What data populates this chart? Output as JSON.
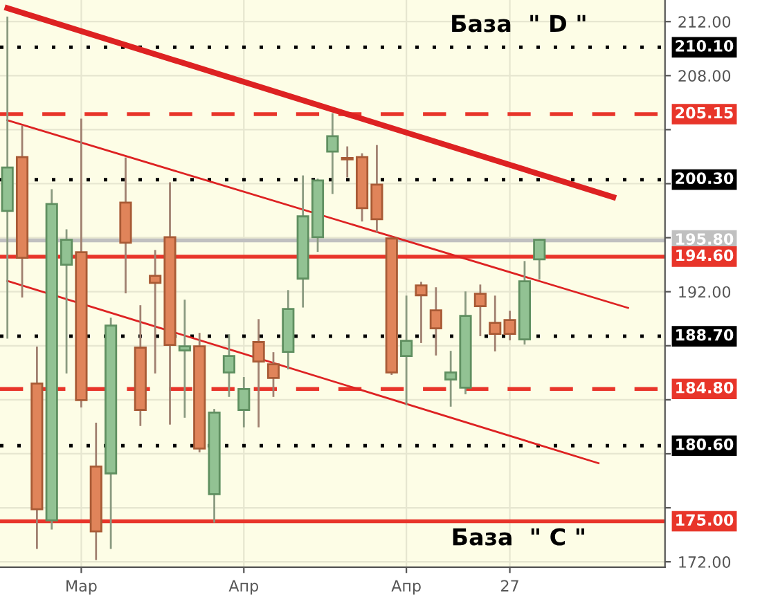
{
  "chart_data": {
    "type": "candlestick",
    "categories": [
      null,
      null,
      null,
      null,
      null,
      "Мар",
      null,
      null,
      null,
      null,
      null,
      null,
      null,
      null,
      null,
      null,
      "Апр",
      null,
      null,
      null,
      null,
      null,
      null,
      null,
      null,
      null,
      null,
      "Апр",
      null,
      null,
      null,
      null,
      null,
      null,
      "27",
      null,
      null,
      null,
      null,
      null,
      null,
      null,
      null,
      null,
      null
    ],
    "ohlc": [
      [
        197.98,
        212.3,
        188.6,
        201.2
      ],
      [
        201.97,
        204.23,
        191.64,
        194.51
      ],
      [
        185.2,
        187.86,
        173.02,
        175.89
      ],
      [
        175.07,
        199.52,
        174.46,
        198.5
      ],
      [
        194.0,
        196.55,
        186.02,
        195.84
      ],
      [
        194.92,
        204.74,
        183.5,
        183.97
      ],
      [
        179.06,
        182.23,
        172.2,
        174.25
      ],
      [
        178.55,
        190.0,
        173.02,
        189.49
      ],
      [
        198.6,
        201.87,
        191.95,
        195.63
      ],
      [
        187.86,
        190.93,
        182.13,
        183.25
      ],
      [
        193.18,
        195.02,
        186.02,
        192.66
      ],
      [
        196.04,
        200.03,
        182.23,
        188.06
      ],
      [
        187.65,
        191.34,
        182.74,
        187.96
      ],
      [
        187.96,
        188.88,
        180.18,
        180.39
      ],
      [
        177.01,
        183.25,
        174.97,
        183.05
      ],
      [
        186.02,
        188.78,
        184.28,
        187.24
      ],
      [
        183.25,
        185.61,
        182.03,
        184.79
      ],
      [
        188.27,
        189.9,
        182.03,
        186.83
      ],
      [
        186.63,
        187.45,
        184.28,
        185.61
      ],
      [
        187.55,
        192.05,
        186.32,
        190.72
      ],
      [
        192.97,
        200.54,
        190.9,
        197.58
      ],
      [
        196.04,
        200.3,
        195.02,
        200.24
      ],
      [
        202.38,
        205.15,
        199.31,
        203.51
      ],
      [
        201.9,
        202.69,
        200.54,
        201.8
      ],
      [
        201.97,
        202.18,
        197.27,
        198.19
      ],
      [
        199.93,
        202.79,
        196.45,
        197.37
      ],
      [
        195.94,
        196.0,
        185.91,
        186.02
      ],
      [
        187.24,
        191.64,
        183.66,
        188.37
      ],
      [
        192.46,
        192.66,
        188.27,
        191.74
      ],
      [
        190.62,
        192.26,
        187.35,
        189.29
      ],
      [
        185.5,
        187.55,
        183.56,
        186.02
      ],
      [
        184.89,
        191.95,
        184.48,
        190.21
      ],
      [
        191.85,
        192.46,
        188.78,
        190.93
      ],
      [
        189.7,
        191.64,
        187.65,
        188.88
      ],
      [
        189.9,
        190.52,
        188.47,
        188.88
      ],
      [
        188.47,
        194.2,
        188.16,
        192.77
      ],
      [
        194.4,
        195.84,
        192.97,
        195.84
      ],
      null,
      null,
      null,
      null,
      null,
      null,
      null,
      null
    ],
    "series": [
      {
        "type": "line",
        "color": "#dd2222",
        "values": [
          213,
          null,
          null,
          null,
          null,
          null,
          null,
          null,
          null,
          null,
          null,
          null,
          null,
          null,
          null,
          null,
          null,
          null,
          null,
          null,
          null,
          null,
          null,
          null,
          null,
          null,
          null,
          null,
          null,
          null,
          null,
          null,
          null,
          null,
          null,
          null,
          null,
          null,
          null,
          null,
          null,
          199,
          null,
          null,
          null
        ]
      },
      {
        "type": "line",
        "color": "#dd2222",
        "values": [
          204.7,
          null,
          null,
          null,
          null,
          null,
          null,
          null,
          null,
          null,
          null,
          null,
          null,
          null,
          null,
          null,
          null,
          null,
          null,
          null,
          null,
          null,
          null,
          null,
          null,
          null,
          null,
          null,
          null,
          null,
          null,
          null,
          null,
          null,
          null,
          null,
          null,
          null,
          null,
          null,
          null,
          null,
          190.8,
          null,
          null
        ]
      },
      {
        "type": "line",
        "color": "#dd2222",
        "values": [
          192.8,
          null,
          null,
          null,
          null,
          null,
          null,
          null,
          null,
          null,
          null,
          null,
          null,
          null,
          null,
          null,
          null,
          null,
          null,
          null,
          null,
          null,
          null,
          null,
          null,
          null,
          null,
          null,
          null,
          null,
          null,
          null,
          null,
          null,
          null,
          null,
          null,
          null,
          null,
          null,
          179.3,
          null,
          null,
          null,
          null
        ]
      }
    ],
    "ylim": [
      171.6,
      213.6
    ],
    "yticks": [
      {
        "value": 172,
        "label": "172.00"
      },
      {
        "value": 176,
        "label": null
      },
      {
        "value": 180,
        "label": null
      },
      {
        "value": 184,
        "label": null
      },
      {
        "value": 188,
        "label": null
      },
      {
        "value": 192,
        "label": "192.00"
      },
      {
        "value": 196,
        "label": null
      },
      {
        "value": 200,
        "label": null
      },
      {
        "value": 204,
        "label": null
      },
      {
        "value": 208,
        "label": "208.00"
      },
      {
        "value": 212,
        "label": "212.00"
      }
    ],
    "ref_lines": [
      {
        "axis": "y",
        "value": 210.1,
        "label": "210.10",
        "color": "#000000",
        "line_style": "dotted"
      },
      {
        "axis": "y",
        "value": 205.15,
        "label": "205.15",
        "color": "#e8352a",
        "line_style": "dashed"
      },
      {
        "axis": "y",
        "value": 200.3,
        "label": "200.30",
        "color": "#000000",
        "line_style": "dotted"
      },
      {
        "axis": "y",
        "value": 195.8,
        "label": "195.80",
        "color": "#c0c0c0",
        "line_style": "solid"
      },
      {
        "axis": "y",
        "value": 194.6,
        "label": "194.60",
        "color": "#e8352a",
        "line_style": "solid"
      },
      {
        "axis": "y",
        "value": 188.7,
        "label": "188.70",
        "color": "#000000",
        "line_style": "dotted"
      },
      {
        "axis": "y",
        "value": 184.8,
        "label": "184.80",
        "color": "#e8352a",
        "line_style": "dashed"
      },
      {
        "axis": "y",
        "value": 180.6,
        "label": "180.60",
        "color": "#000000",
        "line_style": "dotted"
      },
      {
        "axis": "y",
        "value": 175.0,
        "label": "175.00",
        "color": "#e8352a",
        "line_style": "solid"
      }
    ],
    "annotations": [
      "База  \" D \"",
      "База  \" C \""
    ],
    "grid": true,
    "legend": false
  }
}
